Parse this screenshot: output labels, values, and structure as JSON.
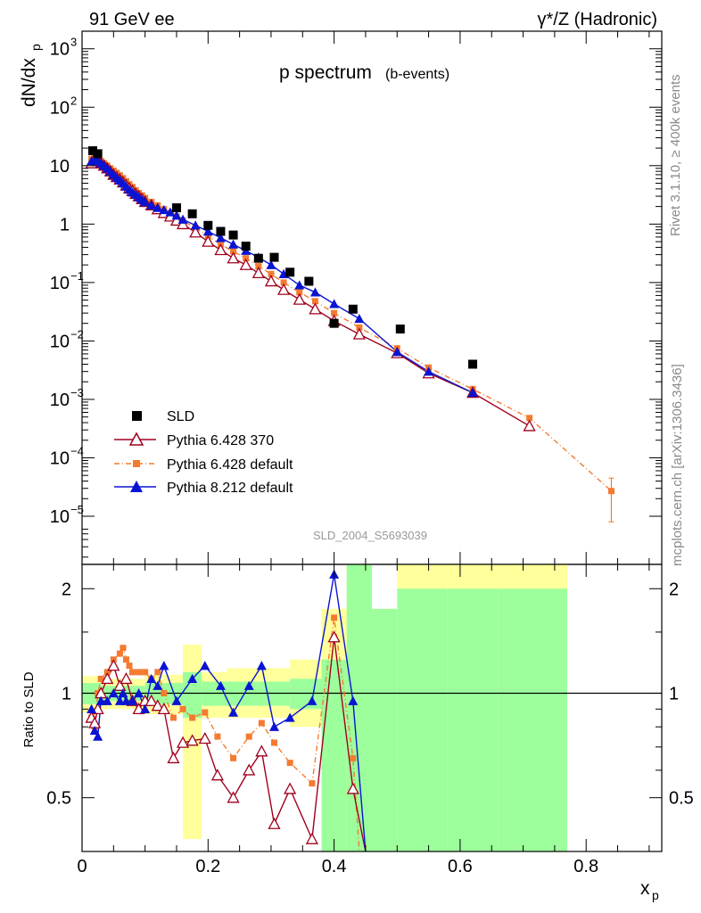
{
  "header": {
    "left": "91 GeV ee",
    "right": "γ*/Z (Hadronic)"
  },
  "side": {
    "rivet": "Rivet 3.1.10, ≥ 400k events",
    "mcplots": "mcplots.cern.ch [arXiv:1306.3436]"
  },
  "colors": {
    "sld": "#000000",
    "py6_370": "#a0001e",
    "py6_default": "#f47a30",
    "py8": "#0a14d2",
    "band_inner": "#9cff9c",
    "band_outer": "#ffff9c"
  },
  "chart_data": [
    {
      "type": "scatter",
      "title": "p spectrum",
      "subtitle": "(b-events)",
      "watermark": "SLD_2004_S5693039",
      "ylabel": "dN/dx",
      "ylabel_sub": "p",
      "yscale": "log",
      "xlim": [
        0,
        0.92
      ],
      "ylim": [
        1.5e-06,
        2000
      ],
      "ytick_labels": [
        {
          "base": "10",
          "exp": "3",
          "value": 1000
        },
        {
          "base": "10",
          "exp": "2",
          "value": 100
        },
        {
          "base": "10",
          "exp": "",
          "value": 10
        },
        {
          "base": "1",
          "exp": "",
          "value": 1
        },
        {
          "base": "10",
          "exp": "−1",
          "value": 0.1
        },
        {
          "base": "10",
          "exp": "−2",
          "value": 0.01
        },
        {
          "base": "10",
          "exp": "−3",
          "value": 0.001
        },
        {
          "base": "10",
          "exp": "−4",
          "value": 0.0001
        },
        {
          "base": "10",
          "exp": "−5",
          "value": 1e-05
        }
      ],
      "legend": [
        {
          "key": "sld",
          "label": "SLD"
        },
        {
          "key": "py6_370",
          "label": "Pythia 6.428 370"
        },
        {
          "key": "py6_default",
          "label": "Pythia 6.428 default"
        },
        {
          "key": "py8",
          "label": "Pythia 8.212 default"
        }
      ],
      "series": {
        "sld": {
          "name": "SLD",
          "x": [
            0.017,
            0.025,
            0.15,
            0.175,
            0.2,
            0.22,
            0.24,
            0.26,
            0.28,
            0.305,
            0.33,
            0.36,
            0.4,
            0.43,
            0.505,
            0.62
          ],
          "y": [
            18,
            16,
            1.9,
            1.5,
            0.95,
            0.75,
            0.65,
            0.42,
            0.26,
            0.27,
            0.15,
            0.105,
            0.02,
            0.035,
            0.016,
            0.004
          ]
        },
        "py6_370": {
          "name": "Pythia 6.428 370",
          "x": [
            0.015,
            0.02,
            0.025,
            0.03,
            0.035,
            0.04,
            0.045,
            0.05,
            0.055,
            0.06,
            0.065,
            0.07,
            0.075,
            0.08,
            0.085,
            0.09,
            0.095,
            0.1,
            0.11,
            0.12,
            0.13,
            0.14,
            0.15,
            0.16,
            0.18,
            0.2,
            0.22,
            0.24,
            0.26,
            0.28,
            0.3,
            0.32,
            0.345,
            0.37,
            0.4,
            0.44,
            0.5,
            0.55,
            0.62,
            0.71
          ],
          "y": [
            11,
            13,
            12,
            11,
            10,
            9,
            8,
            7,
            6.4,
            5.8,
            5.2,
            4.6,
            4.1,
            3.7,
            3.3,
            3.0,
            2.7,
            2.4,
            2.1,
            1.8,
            1.55,
            1.35,
            1.15,
            1.0,
            0.72,
            0.5,
            0.36,
            0.26,
            0.2,
            0.145,
            0.105,
            0.075,
            0.051,
            0.035,
            0.022,
            0.013,
            0.0062,
            0.0028,
            0.0013,
            0.00035
          ]
        },
        "py6_default": {
          "name": "Pythia 6.428 default",
          "x": [
            0.015,
            0.02,
            0.025,
            0.03,
            0.035,
            0.04,
            0.045,
            0.05,
            0.055,
            0.06,
            0.065,
            0.07,
            0.075,
            0.08,
            0.085,
            0.09,
            0.095,
            0.1,
            0.11,
            0.12,
            0.13,
            0.14,
            0.15,
            0.16,
            0.18,
            0.2,
            0.22,
            0.24,
            0.26,
            0.28,
            0.3,
            0.32,
            0.345,
            0.37,
            0.4,
            0.44,
            0.5,
            0.55,
            0.62,
            0.71,
            0.84
          ],
          "y": [
            13,
            14,
            13,
            12,
            11,
            10,
            9,
            8.2,
            7.5,
            6.8,
            6.1,
            5.4,
            4.8,
            4.3,
            3.8,
            3.4,
            3.1,
            2.8,
            2.4,
            2.1,
            1.8,
            1.55,
            1.35,
            1.15,
            0.85,
            0.62,
            0.45,
            0.34,
            0.26,
            0.19,
            0.14,
            0.1,
            0.068,
            0.048,
            0.03,
            0.017,
            0.0075,
            0.0035,
            0.0015,
            0.00048,
            2.7e-05
          ]
        },
        "py8": {
          "name": "Pythia 8.212 default",
          "x": [
            0.015,
            0.02,
            0.025,
            0.03,
            0.035,
            0.04,
            0.045,
            0.05,
            0.055,
            0.06,
            0.065,
            0.07,
            0.075,
            0.08,
            0.085,
            0.09,
            0.095,
            0.1,
            0.11,
            0.12,
            0.13,
            0.14,
            0.15,
            0.16,
            0.18,
            0.2,
            0.22,
            0.24,
            0.26,
            0.28,
            0.3,
            0.32,
            0.345,
            0.37,
            0.4,
            0.44,
            0.5,
            0.55,
            0.62
          ],
          "y": [
            12,
            12.5,
            12,
            11,
            10,
            9,
            8,
            7,
            6.2,
            5.6,
            5.0,
            4.4,
            3.9,
            3.5,
            3.2,
            2.9,
            2.6,
            2.4,
            2.1,
            1.9,
            1.75,
            1.6,
            1.4,
            1.2,
            0.95,
            0.75,
            0.58,
            0.45,
            0.35,
            0.27,
            0.2,
            0.14,
            0.09,
            0.068,
            0.043,
            0.024,
            0.0065,
            0.003,
            0.0013
          ]
        }
      }
    },
    {
      "type": "scatter",
      "ylabel": "Ratio to SLD",
      "xlabel": "x",
      "xlabel_sub": "p",
      "ylim": [
        0.35,
        2.35
      ],
      "xlim": [
        0,
        0.92
      ],
      "ytick_labels": [
        "2",
        "1",
        "0.5"
      ],
      "yticks": [
        2,
        1,
        0.5
      ],
      "xtick_labels": [
        "0",
        "0.2",
        "0.4",
        "0.6",
        "0.8"
      ],
      "xticks": [
        0,
        0.2,
        0.4,
        0.6,
        0.8
      ],
      "bands": [
        {
          "x0": 0.0,
          "x1": 0.03,
          "inner": [
            0.93,
            1.07
          ],
          "outer": [
            0.88,
            1.12
          ]
        },
        {
          "x0": 0.03,
          "x1": 0.1,
          "inner": [
            0.95,
            1.05
          ],
          "outer": [
            0.9,
            1.1
          ]
        },
        {
          "x0": 0.1,
          "x1": 0.16,
          "inner": [
            0.93,
            1.07
          ],
          "outer": [
            0.87,
            1.13
          ]
        },
        {
          "x0": 0.16,
          "x1": 0.19,
          "inner": [
            0.85,
            1.15
          ],
          "outer": [
            0.38,
            1.38
          ]
        },
        {
          "x0": 0.19,
          "x1": 0.23,
          "inner": [
            0.92,
            1.08
          ],
          "outer": [
            0.85,
            1.15
          ]
        },
        {
          "x0": 0.23,
          "x1": 0.33,
          "inner": [
            0.92,
            1.08
          ],
          "outer": [
            0.85,
            1.18
          ]
        },
        {
          "x0": 0.33,
          "x1": 0.38,
          "inner": [
            0.9,
            1.1
          ],
          "outer": [
            0.8,
            1.25
          ]
        },
        {
          "x0": 0.38,
          "x1": 0.42,
          "inner": [
            0.35,
            1.25
          ],
          "outer": [
            0.35,
            1.75
          ]
        },
        {
          "x0": 0.42,
          "x1": 0.46,
          "inner": [
            0.35,
            2.35
          ],
          "outer": [
            0.35,
            2.35
          ]
        },
        {
          "x0": 0.46,
          "x1": 0.5,
          "inner": [
            0.35,
            1.75
          ],
          "outer": [
            0.35,
            1.75
          ]
        },
        {
          "x0": 0.5,
          "x1": 0.58,
          "inner": [
            0.35,
            2.0
          ],
          "outer": [
            0.35,
            2.35
          ]
        },
        {
          "x0": 0.58,
          "x1": 0.66,
          "inner": [
            0.35,
            2.0
          ],
          "outer": [
            0.35,
            2.35
          ]
        },
        {
          "x0": 0.66,
          "x1": 0.77,
          "inner": [
            0.35,
            2.0
          ],
          "outer": [
            0.35,
            2.35
          ]
        }
      ],
      "series": {
        "py6_370": {
          "name": "Pythia 6.428 370",
          "x": [
            0.015,
            0.02,
            0.025,
            0.03,
            0.04,
            0.05,
            0.06,
            0.07,
            0.08,
            0.09,
            0.1,
            0.11,
            0.12,
            0.13,
            0.145,
            0.16,
            0.175,
            0.195,
            0.215,
            0.24,
            0.265,
            0.285,
            0.305,
            0.33,
            0.365,
            0.4,
            0.43,
            0.45
          ],
          "y": [
            0.85,
            0.82,
            0.9,
            1.0,
            1.1,
            1.2,
            1.05,
            1.1,
            0.95,
            0.9,
            0.95,
            0.95,
            0.92,
            0.9,
            0.65,
            0.72,
            0.73,
            0.74,
            0.58,
            0.5,
            0.6,
            0.68,
            0.42,
            0.53,
            0.38,
            1.45,
            0.53,
            0.2
          ]
        },
        "py6_default": {
          "name": "Pythia 6.428 default",
          "x": [
            0.015,
            0.02,
            0.025,
            0.03,
            0.04,
            0.05,
            0.06,
            0.065,
            0.07,
            0.075,
            0.08,
            0.09,
            0.1,
            0.11,
            0.12,
            0.13,
            0.145,
            0.16,
            0.175,
            0.195,
            0.215,
            0.24,
            0.265,
            0.285,
            0.305,
            0.33,
            0.365,
            0.4,
            0.43,
            0.44
          ],
          "y": [
            0.85,
            0.8,
            1.0,
            1.1,
            1.15,
            1.25,
            1.3,
            1.35,
            1.25,
            1.2,
            1.15,
            1.15,
            1.15,
            1.1,
            1.15,
            1.0,
            0.85,
            0.9,
            0.85,
            0.88,
            0.75,
            0.65,
            0.75,
            0.82,
            0.72,
            0.63,
            0.55,
            1.65,
            0.65,
            0.3
          ]
        },
        "py8": {
          "name": "Pythia 8.212 default",
          "x": [
            0.015,
            0.02,
            0.025,
            0.03,
            0.04,
            0.05,
            0.06,
            0.065,
            0.07,
            0.08,
            0.09,
            0.1,
            0.11,
            0.12,
            0.13,
            0.15,
            0.175,
            0.195,
            0.22,
            0.24,
            0.265,
            0.285,
            0.305,
            0.33,
            0.365,
            0.4,
            0.43,
            0.45
          ],
          "y": [
            0.9,
            0.78,
            0.75,
            0.95,
            0.95,
            1.0,
            0.95,
            1.0,
            0.95,
            0.95,
            1.0,
            0.9,
            1.1,
            1.05,
            1.2,
            0.95,
            1.1,
            1.2,
            1.05,
            0.88,
            1.05,
            1.2,
            0.8,
            0.85,
            0.95,
            2.2,
            0.95,
            0.2
          ]
        }
      }
    }
  ]
}
